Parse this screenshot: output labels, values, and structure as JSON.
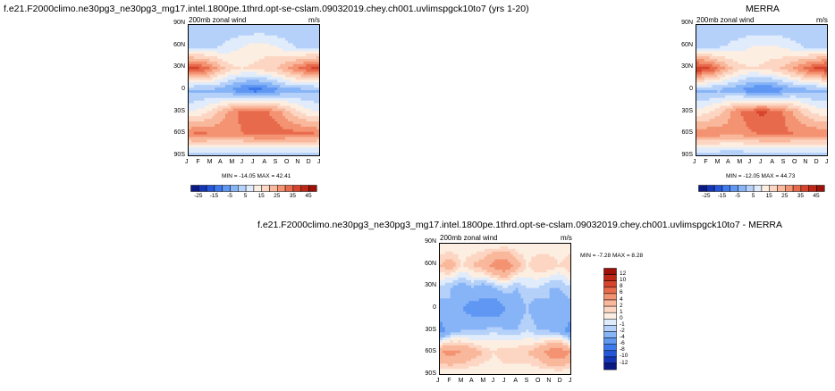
{
  "chart_data": [
    {
      "type": "heatmap",
      "title": "f.e21.F2000climo.ne30pg3_ne30pg3_mg17.intel.1800pe.1thrd.opt-se-cslam.09032019.chey.ch001.uvlimspgck10to7 (yrs 1-20)",
      "subtitle": "200mb zonal wind",
      "units": "m/s",
      "x": [
        "J",
        "F",
        "M",
        "A",
        "M",
        "J",
        "J",
        "A",
        "S",
        "O",
        "N",
        "D",
        "J"
      ],
      "y": [
        "90N",
        "60N",
        "30N",
        "0",
        "30S",
        "60S",
        "90S"
      ],
      "stats": "MIN = -14.05  MAX = 42.41",
      "colorbar": [
        "-25",
        "-15",
        "-5",
        "5",
        "15",
        "25",
        "35",
        "45"
      ],
      "levels": [
        -30,
        -25,
        -20,
        -15,
        -10,
        -5,
        0,
        5,
        10,
        15,
        20,
        25,
        30,
        35,
        40,
        45,
        50
      ],
      "values": [
        [
          0,
          0,
          0,
          0,
          0,
          0,
          0,
          0,
          0,
          0,
          0,
          0,
          0
        ],
        [
          3,
          3,
          4,
          5,
          8,
          10,
          12,
          12,
          10,
          7,
          4,
          3,
          3
        ],
        [
          38,
          36,
          30,
          22,
          16,
          15,
          16,
          18,
          20,
          25,
          30,
          35,
          38
        ],
        [
          -2,
          -2,
          -1,
          -3,
          -6,
          -10,
          -13,
          -11,
          -7,
          -3,
          -2,
          -2,
          -2
        ],
        [
          10,
          12,
          16,
          22,
          28,
          32,
          33,
          31,
          28,
          22,
          16,
          12,
          10
        ],
        [
          30,
          31,
          30,
          28,
          28,
          30,
          32,
          33,
          33,
          32,
          32,
          31,
          30
        ],
        [
          0,
          0,
          0,
          0,
          0,
          0,
          0,
          0,
          0,
          0,
          0,
          0,
          0
        ]
      ]
    },
    {
      "type": "heatmap",
      "title": "MERRA",
      "subtitle": "200mb zonal wind",
      "units": "m/s",
      "x": [
        "J",
        "F",
        "M",
        "A",
        "M",
        "J",
        "J",
        "A",
        "S",
        "O",
        "N",
        "D",
        "J"
      ],
      "y": [
        "90N",
        "60N",
        "30N",
        "0",
        "30S",
        "60S",
        "90S"
      ],
      "stats": "MIN = -12.05  MAX = 44.73",
      "colorbar": [
        "-25",
        "-15",
        "-5",
        "5",
        "15",
        "25",
        "35",
        "45"
      ],
      "levels": [
        -30,
        -25,
        -20,
        -15,
        -10,
        -5,
        0,
        5,
        10,
        15,
        20,
        25,
        30,
        35,
        40,
        45,
        50
      ],
      "values": [
        [
          0,
          0,
          0,
          0,
          0,
          0,
          0,
          0,
          0,
          0,
          0,
          0,
          0
        ],
        [
          3,
          3,
          4,
          6,
          8,
          10,
          11,
          11,
          9,
          7,
          4,
          3,
          3
        ],
        [
          40,
          38,
          30,
          22,
          17,
          15,
          16,
          18,
          21,
          26,
          32,
          37,
          40
        ],
        [
          -2,
          -2,
          -1,
          -3,
          -5,
          -9,
          -11,
          -10,
          -6,
          -3,
          -2,
          -2,
          -2
        ],
        [
          12,
          14,
          18,
          24,
          30,
          34,
          36,
          34,
          30,
          24,
          18,
          13,
          12
        ],
        [
          28,
          29,
          28,
          27,
          27,
          29,
          31,
          31,
          31,
          30,
          30,
          29,
          28
        ],
        [
          0,
          0,
          0,
          0,
          0,
          0,
          0,
          0,
          0,
          0,
          0,
          0,
          0
        ]
      ]
    },
    {
      "type": "heatmap",
      "title": "f.e21.F2000climo.ne30pg3_ne30pg3_mg17.intel.1800pe.1thrd.opt-se-cslam.09032019.chey.ch001.uvlimspgck10to7 - MERRA",
      "subtitle": "200mb zonal wind",
      "units": "m/s",
      "x": [
        "J",
        "F",
        "M",
        "A",
        "M",
        "J",
        "J",
        "A",
        "S",
        "O",
        "N",
        "D",
        "J"
      ],
      "y": [
        "90N",
        "60N",
        "30N",
        "0",
        "30S",
        "60S",
        "90S"
      ],
      "stats": "MIN = -7.28  MAX = 8.28",
      "colorbar": [
        "12",
        "10",
        "8",
        "6",
        "4",
        "2",
        "1",
        "0",
        "-1",
        "-2",
        "-4",
        "-6",
        "-8",
        "-10",
        "-12"
      ],
      "levels": [
        -14,
        -12,
        -10,
        -8,
        -6,
        -4,
        -2,
        -1,
        0,
        1,
        2,
        4,
        6,
        8,
        10,
        12,
        14
      ],
      "values": [
        [
          0,
          0,
          0,
          0,
          0,
          0,
          0,
          0,
          0,
          0,
          0,
          0,
          0
        ],
        [
          2,
          3,
          1,
          2,
          3,
          5,
          6,
          3,
          1,
          2,
          2,
          1,
          2
        ],
        [
          -1,
          -2,
          -3,
          -2,
          -3,
          -2,
          -1,
          -2,
          -1,
          -1,
          -2,
          -2,
          -1
        ],
        [
          -3,
          -2,
          -4,
          -5,
          -5,
          -6,
          -4,
          -3,
          -2,
          -3,
          -2,
          -3,
          -3
        ],
        [
          -5,
          -3,
          -2,
          -2,
          -2,
          -1,
          -2,
          -2,
          -1,
          -2,
          -2,
          -3,
          -5
        ],
        [
          4,
          5,
          4,
          3,
          2,
          1,
          2,
          2,
          2,
          3,
          5,
          6,
          4
        ],
        [
          0,
          0,
          0,
          0,
          0,
          0,
          0,
          0,
          0,
          0,
          0,
          0,
          0
        ]
      ]
    }
  ]
}
